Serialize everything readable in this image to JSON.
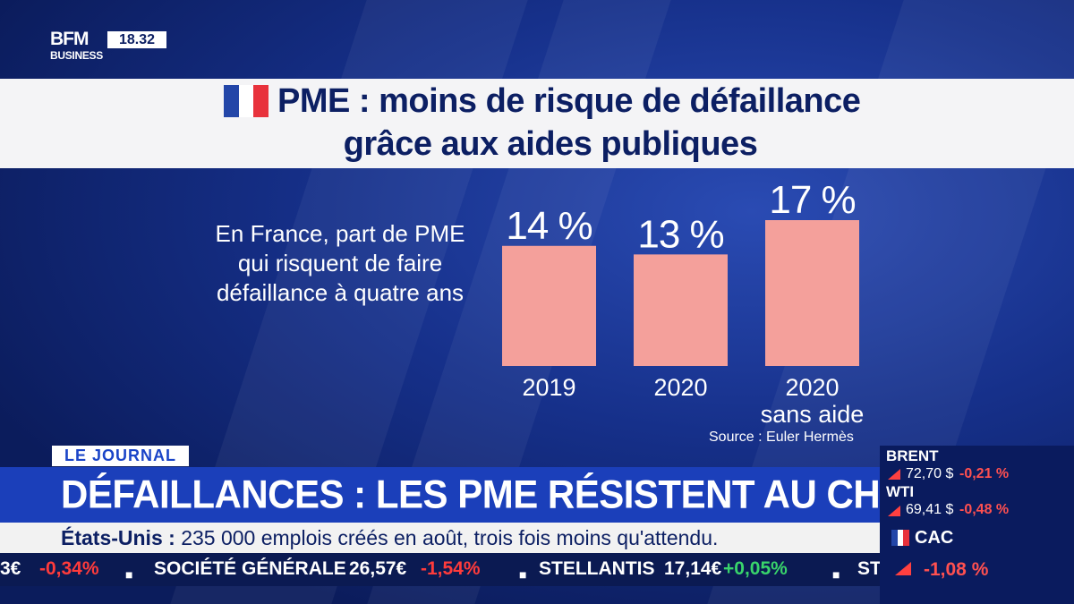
{
  "header": {
    "logo_main": "BFM",
    "logo_sub": "BUSINESS",
    "clock": "18.32"
  },
  "title": {
    "line1": "PME : moins de risque de défaillance",
    "line2": "grâce aux aides publiques"
  },
  "chart_data": {
    "type": "bar",
    "description_lines": [
      "En France, part de PME",
      "qui risquent de faire",
      "défaillance à quatre ans"
    ],
    "categories": [
      "2019",
      "2020",
      "2020 sans aide"
    ],
    "category_lines": [
      [
        "2019"
      ],
      [
        "2020"
      ],
      [
        "2020",
        "sans aide"
      ]
    ],
    "values": [
      14,
      13,
      17
    ],
    "value_labels": [
      "14 %",
      "13 %",
      "17 %"
    ],
    "unit": "%",
    "ylim": [
      0,
      17
    ],
    "bar_color": "#f4a09b",
    "source": "Source : Euler Hermès"
  },
  "lower_third": {
    "tag": "LE JOURNAL",
    "headline": "DÉFAILLANCES : LES PME RÉSISTENT AU CHOC",
    "news_country": "États-Unis :",
    "news_text": "235 000 emplois créés en août, trois fois moins qu'attendu."
  },
  "ticker": {
    "items": [
      {
        "text": "3€",
        "kind": "name"
      },
      {
        "text": "-0,34%",
        "kind": "neg"
      },
      {
        "text": "■",
        "kind": "sep"
      },
      {
        "text": "SOCIÉTÉ GÉNÉRALE",
        "kind": "name"
      },
      {
        "text": "26,57€",
        "kind": "name"
      },
      {
        "text": "-1,54%",
        "kind": "neg"
      },
      {
        "text": "■",
        "kind": "sep"
      },
      {
        "text": "STELLANTIS",
        "kind": "name"
      },
      {
        "text": "17,14€",
        "kind": "name"
      },
      {
        "text": "+0,05%",
        "kind": "pos"
      },
      {
        "text": "■",
        "kind": "sep"
      },
      {
        "text": "ST",
        "kind": "name"
      }
    ]
  },
  "market": {
    "brent": {
      "name": "BRENT",
      "value": "72,70 $",
      "change": "-0,21 %"
    },
    "wti": {
      "name": "WTI",
      "value": "69,41 $",
      "change": "-0,48 %"
    },
    "cac": {
      "name": "CAC",
      "change": "-1,08 %"
    }
  },
  "colors": {
    "navy": "#0c1f63",
    "accent_blue": "#1b3fba",
    "negative": "#ff3b3b",
    "positive": "#39d46b",
    "flag_blue": "#2346a8",
    "flag_white": "#ffffff",
    "flag_red": "#e8323c"
  }
}
